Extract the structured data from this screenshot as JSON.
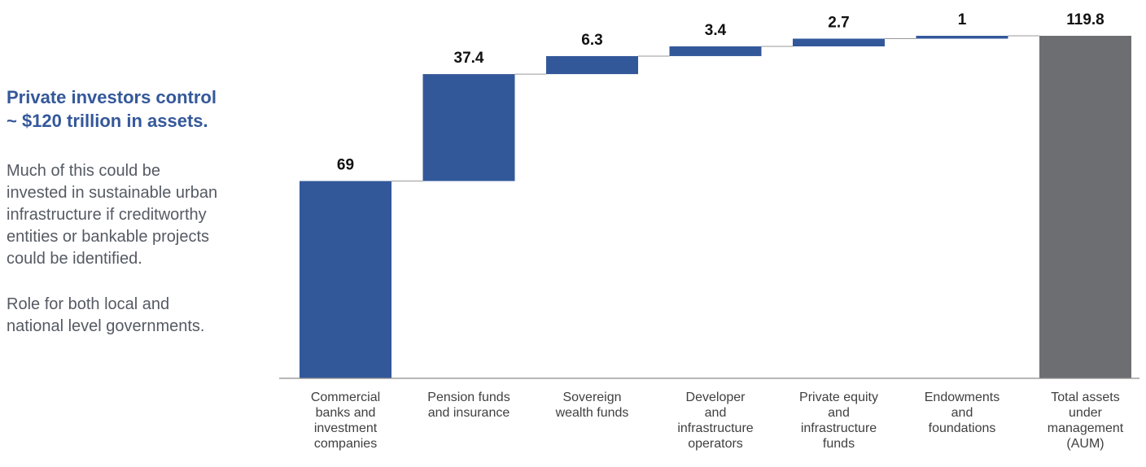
{
  "sidebar": {
    "heading": "Private investors control\n~ $120 trillion in assets.",
    "paragraph1": "Much of this could be\ninvested in sustainable urban\ninfrastructure if creditworthy\nentities or bankable projects\ncould be identified.",
    "paragraph2": "Role for both local and\nnational level governments."
  },
  "chart_data": {
    "type": "bar",
    "subtype": "waterfall",
    "categories": [
      [
        "Commercial",
        "banks and",
        "investment",
        "companies"
      ],
      [
        "Pension funds",
        "and insurance"
      ],
      [
        "Sovereign",
        "wealth funds"
      ],
      [
        "Developer",
        "and",
        "infrastructure",
        "operators"
      ],
      [
        "Private equity",
        "and",
        "infrastructure",
        "funds"
      ],
      [
        "Endowments",
        "and",
        "foundations"
      ],
      [
        "Total assets",
        "under",
        "management",
        "(AUM)"
      ]
    ],
    "values": [
      69,
      37.4,
      6.3,
      3.4,
      2.7,
      1,
      119.8
    ],
    "labels": [
      "69",
      "37.4",
      "6.3",
      "3.4",
      "2.7",
      "1",
      "119.8"
    ],
    "is_total": [
      false,
      false,
      false,
      false,
      false,
      false,
      true
    ],
    "colors": {
      "increment": "#33589a",
      "total": "#6d6e71",
      "connector": "#9a9a9a",
      "axis": "#8c8c8c"
    },
    "ylim": [
      0,
      120
    ],
    "grid": false
  }
}
